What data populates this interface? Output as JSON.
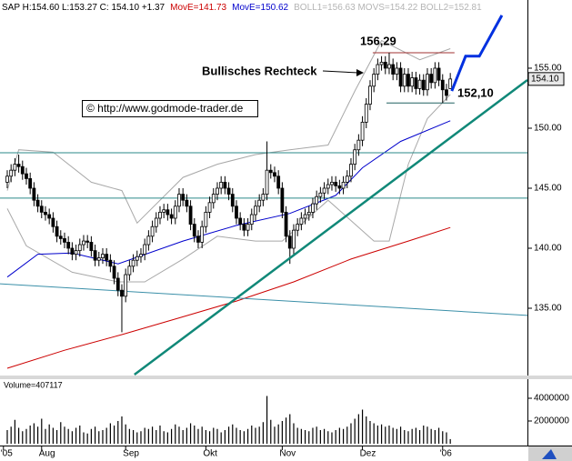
{
  "chart_data": [
    {
      "type": "candlestick",
      "header": [
        {
          "text": "SAP H:154.60 L:153.27 C: 154.10 +1.37",
          "color": "#000000"
        },
        {
          "text": "MovE=141.73",
          "color": "#cc0000"
        },
        {
          "text": "MovE=150.62",
          "color": "#0000cc"
        },
        {
          "text": "BOLL1=156.63 MOVS=154.22 BOLL2=152.81",
          "color": "#b4b4b4"
        }
      ],
      "annotations": {
        "high": "156,29",
        "pattern": "Bullisches Rechteck",
        "low": "152,10",
        "source": "© http://www.godmode-trader.de"
      },
      "last_label": "154.10",
      "up_color": "#ffffff",
      "down_color": "#000000",
      "xlim": [
        -1.9,
        136.2
      ],
      "xticks": [
        {
          "value": -1,
          "label": "'05"
        },
        {
          "value": 9,
          "label": "Aug"
        },
        {
          "value": 31,
          "label": "Sep"
        },
        {
          "value": 52,
          "label": "Okt"
        },
        {
          "value": 72,
          "label": "Nov"
        },
        {
          "value": 93,
          "label": "Dez"
        },
        {
          "value": 114,
          "label": "'06"
        }
      ],
      "ylim": [
        129.47,
        160.68
      ],
      "yticks": [
        {
          "value": 135,
          "label": "135.00"
        },
        {
          "value": 140,
          "label": "140.00"
        },
        {
          "value": 145,
          "label": "145.00"
        },
        {
          "value": 150,
          "label": "150.00"
        },
        {
          "value": 155,
          "label": "155.00"
        }
      ],
      "ohlc": [
        [
          145.5,
          146.5,
          145.0,
          146.0
        ],
        [
          146.0,
          147.0,
          145.5,
          146.5
        ],
        [
          146.5,
          147.5,
          146.0,
          147.0
        ],
        [
          147.0,
          147.8,
          146.3,
          146.8
        ],
        [
          146.8,
          147.3,
          145.7,
          146.2
        ],
        [
          146.2,
          146.7,
          145.3,
          145.8
        ],
        [
          145.8,
          146.3,
          144.5,
          145.0
        ],
        [
          145.0,
          145.5,
          143.5,
          144.0
        ],
        [
          144.0,
          144.5,
          143.0,
          143.5
        ],
        [
          143.5,
          144.0,
          142.5,
          143.0
        ],
        [
          143.0,
          143.5,
          142.3,
          142.8
        ],
        [
          142.8,
          143.3,
          142.0,
          142.5
        ],
        [
          142.5,
          143.0,
          141.3,
          141.8
        ],
        [
          141.8,
          142.3,
          140.5,
          141.0
        ],
        [
          141.0,
          141.5,
          140.3,
          140.8
        ],
        [
          140.8,
          141.3,
          140.0,
          140.5
        ],
        [
          140.5,
          141.0,
          139.5,
          140.0
        ],
        [
          140.0,
          140.5,
          139.0,
          139.5
        ],
        [
          139.5,
          140.3,
          139.0,
          139.8
        ],
        [
          139.8,
          140.8,
          139.3,
          140.3
        ],
        [
          140.3,
          141.1,
          139.8,
          140.6
        ],
        [
          140.6,
          141.1,
          140.0,
          140.5
        ],
        [
          140.5,
          141.0,
          139.3,
          139.8
        ],
        [
          139.8,
          140.3,
          138.5,
          139.0
        ],
        [
          139.0,
          139.7,
          138.5,
          139.2
        ],
        [
          139.2,
          140.0,
          138.7,
          139.5
        ],
        [
          139.5,
          140.0,
          138.5,
          139.0
        ],
        [
          139.0,
          139.5,
          138.0,
          138.5
        ],
        [
          138.5,
          139.0,
          137.0,
          137.5
        ],
        [
          137.5,
          138.0,
          136.0,
          136.5
        ],
        [
          136.5,
          137.0,
          133.0,
          136.0
        ],
        [
          136.0,
          138.3,
          135.5,
          137.8
        ],
        [
          137.8,
          139.0,
          137.3,
          138.5
        ],
        [
          138.5,
          139.5,
          138.0,
          139.0
        ],
        [
          139.0,
          139.8,
          138.5,
          139.3
        ],
        [
          139.3,
          140.0,
          138.8,
          139.5
        ],
        [
          139.5,
          140.8,
          139.0,
          140.3
        ],
        [
          140.3,
          141.5,
          139.8,
          141.0
        ],
        [
          141.0,
          142.3,
          140.5,
          141.8
        ],
        [
          141.8,
          143.0,
          141.3,
          142.5
        ],
        [
          142.5,
          143.5,
          142.0,
          143.0
        ],
        [
          143.0,
          143.7,
          142.5,
          143.2
        ],
        [
          143.2,
          143.7,
          142.3,
          142.8
        ],
        [
          142.8,
          143.3,
          142.0,
          142.5
        ],
        [
          142.5,
          144.0,
          142.0,
          143.5
        ],
        [
          143.5,
          145.0,
          143.0,
          144.5
        ],
        [
          144.5,
          145.0,
          143.5,
          144.0
        ],
        [
          144.0,
          144.5,
          143.0,
          143.5
        ],
        [
          143.5,
          144.0,
          141.5,
          142.0
        ],
        [
          142.0,
          142.5,
          140.5,
          141.0
        ],
        [
          141.0,
          141.5,
          140.0,
          140.5
        ],
        [
          140.5,
          142.3,
          140.0,
          141.8
        ],
        [
          141.8,
          143.5,
          141.3,
          143.0
        ],
        [
          143.0,
          144.3,
          142.5,
          143.8
        ],
        [
          143.8,
          145.0,
          143.3,
          144.5
        ],
        [
          144.5,
          145.5,
          144.0,
          145.0
        ],
        [
          145.0,
          146.0,
          144.5,
          145.5
        ],
        [
          145.5,
          146.0,
          144.5,
          145.0
        ],
        [
          145.0,
          145.5,
          144.0,
          144.5
        ],
        [
          144.5,
          145.0,
          143.0,
          143.5
        ],
        [
          143.5,
          144.0,
          142.0,
          142.5
        ],
        [
          142.5,
          143.0,
          141.5,
          142.0
        ],
        [
          142.0,
          142.5,
          141.0,
          141.5
        ],
        [
          141.5,
          142.5,
          141.0,
          142.0
        ],
        [
          142.0,
          143.3,
          141.5,
          142.8
        ],
        [
          142.8,
          144.0,
          142.3,
          143.5
        ],
        [
          143.5,
          144.5,
          143.0,
          144.0
        ],
        [
          144.0,
          145.0,
          143.5,
          144.5
        ],
        [
          144.5,
          148.9,
          144.0,
          146.5
        ],
        [
          146.5,
          147.0,
          145.8,
          146.3
        ],
        [
          146.3,
          146.8,
          145.5,
          146.0
        ],
        [
          146.0,
          146.5,
          144.5,
          145.0
        ],
        [
          145.0,
          145.5,
          142.5,
          143.0
        ],
        [
          143.0,
          143.5,
          140.5,
          141.0
        ],
        [
          141.0,
          141.5,
          138.7,
          140.0
        ],
        [
          140.0,
          142.0,
          139.5,
          141.5
        ],
        [
          141.5,
          142.5,
          141.0,
          142.0
        ],
        [
          142.0,
          143.0,
          141.5,
          142.5
        ],
        [
          142.5,
          143.3,
          142.0,
          142.8
        ],
        [
          142.8,
          143.5,
          142.3,
          143.0
        ],
        [
          143.0,
          144.2,
          142.5,
          143.7
        ],
        [
          143.7,
          144.8,
          143.2,
          144.3
        ],
        [
          144.3,
          145.1,
          143.8,
          144.6
        ],
        [
          144.6,
          145.5,
          144.1,
          145.0
        ],
        [
          145.0,
          145.8,
          144.5,
          145.3
        ],
        [
          145.3,
          146.0,
          144.8,
          145.5
        ],
        [
          145.5,
          146.0,
          144.7,
          145.2
        ],
        [
          145.2,
          145.7,
          144.5,
          145.0
        ],
        [
          145.0,
          146.0,
          144.5,
          145.5
        ],
        [
          145.5,
          146.5,
          145.0,
          146.0
        ],
        [
          146.0,
          147.5,
          145.5,
          147.0
        ],
        [
          147.0,
          148.7,
          146.5,
          148.2
        ],
        [
          148.2,
          149.5,
          147.7,
          149.0
        ],
        [
          149.0,
          151.0,
          148.5,
          150.5
        ],
        [
          150.5,
          152.5,
          150.0,
          152.0
        ],
        [
          152.0,
          154.0,
          151.5,
          153.5
        ],
        [
          153.5,
          155.0,
          153.0,
          154.5
        ],
        [
          154.5,
          155.8,
          154.0,
          155.3
        ],
        [
          155.3,
          156.0,
          154.8,
          155.5
        ],
        [
          155.5,
          156.0,
          154.5,
          155.0
        ],
        [
          155.0,
          156.29,
          154.5,
          155.3
        ],
        [
          155.3,
          155.8,
          154.0,
          154.5
        ],
        [
          154.5,
          155.5,
          154.0,
          155.0
        ],
        [
          155.0,
          155.5,
          153.0,
          153.5
        ],
        [
          153.5,
          155.0,
          153.0,
          154.5
        ],
        [
          154.5,
          155.0,
          153.0,
          153.5
        ],
        [
          153.5,
          154.7,
          153.0,
          154.2
        ],
        [
          154.2,
          154.7,
          152.8,
          153.3
        ],
        [
          153.3,
          154.5,
          152.8,
          154.0
        ],
        [
          154.0,
          154.5,
          152.7,
          153.2
        ],
        [
          153.2,
          155.0,
          152.7,
          154.5
        ],
        [
          154.5,
          155.0,
          153.3,
          153.8
        ],
        [
          153.8,
          155.5,
          153.3,
          155.0
        ],
        [
          155.0,
          155.5,
          153.5,
          154.0
        ],
        [
          154.0,
          154.5,
          152.1,
          153.2
        ],
        [
          153.2,
          153.7,
          152.3,
          152.73
        ],
        [
          153.3,
          154.6,
          153.27,
          154.1
        ]
      ],
      "lines": [
        {
          "color": "#a8a8a8",
          "style": "thin",
          "x": [
            0,
            3,
            12,
            22,
            30,
            34,
            46,
            55,
            65,
            74,
            84,
            91,
            98,
            108,
            116
          ],
          "values": [
            144.8,
            148.2,
            148.0,
            145.5,
            144.8,
            142.1,
            145.9,
            147.0,
            147.8,
            148.2,
            148.6,
            153.1,
            157.3,
            155.7,
            156.63
          ]
        },
        {
          "color": "#a8a8a8",
          "style": "thin",
          "x": [
            0,
            5,
            17,
            29,
            36,
            46,
            55,
            65,
            72,
            84,
            96,
            100,
            105,
            110,
            116
          ],
          "values": [
            143.3,
            140.2,
            138.0,
            137.2,
            137.2,
            139.1,
            141.0,
            140.6,
            140.6,
            144.0,
            140.6,
            140.6,
            147.0,
            150.8,
            152.81
          ]
        },
        {
          "color": "#cc0000",
          "style": "thin",
          "x": [
            0,
            15,
            30,
            45,
            60,
            75,
            90,
            105,
            116
          ],
          "values": [
            130.0,
            131.5,
            132.8,
            134.2,
            135.6,
            137.2,
            139.1,
            140.6,
            141.73
          ]
        },
        {
          "color": "#0000cc",
          "style": "thin",
          "x": [
            0,
            8,
            17,
            29,
            46,
            60,
            74,
            86,
            93,
            103,
            116
          ],
          "values": [
            137.6,
            139.5,
            139.6,
            138.7,
            140.6,
            141.9,
            142.9,
            144.4,
            146.7,
            148.9,
            150.62
          ]
        },
        {
          "color": "#2a8a8a",
          "style": "thin",
          "x": [
            -1.9,
            136.2
          ],
          "values": [
            147.95,
            147.95
          ]
        },
        {
          "color": "#2a8a8a",
          "style": "thin",
          "x": [
            -1.9,
            136.2
          ],
          "values": [
            144.17,
            144.17
          ]
        },
        {
          "color": "#3a8fa8",
          "style": "thin",
          "x": [
            -1.9,
            136.2
          ],
          "values": [
            137.04,
            134.4
          ]
        },
        {
          "color": "#108878",
          "style": "thick",
          "x": [
            33.3,
            136.2
          ],
          "values": [
            129.47,
            154.01
          ]
        },
        {
          "color": "#a03030",
          "style": "thin",
          "x": [
            95.7,
            117.1
          ],
          "values": [
            156.29,
            156.29
          ]
        },
        {
          "color": "#206060",
          "style": "thin",
          "x": [
            99.3,
            117.1
          ],
          "values": [
            152.1,
            152.1
          ]
        },
        {
          "color": "#0030e0",
          "style": "bold",
          "x": [
            116.4,
            120,
            123.6,
            129.5
          ],
          "values": [
            153.1,
            156.0,
            156.0,
            159.4
          ]
        }
      ]
    },
    {
      "type": "bar",
      "title": "Volume=407117",
      "color": "#000000",
      "ylim": [
        0,
        5440000
      ],
      "yticks": [
        2000000,
        4000000
      ],
      "values": [
        1200000,
        1500000,
        2100000,
        1400000,
        1100000,
        1300000,
        1600000,
        1800000,
        1500000,
        2200000,
        1300000,
        1700000,
        1400000,
        1200000,
        1900000,
        1500000,
        1300000,
        1100000,
        1400000,
        1600000,
        1000000,
        900000,
        1300000,
        1500000,
        1100000,
        1200000,
        1400000,
        1800000,
        1600000,
        2000000,
        2400000,
        1700000,
        1300000,
        1200000,
        1000000,
        1100000,
        1400000,
        1300000,
        1500000,
        1200000,
        1600000,
        1100000,
        1000000,
        1300000,
        1700000,
        1500000,
        1200000,
        1400000,
        1800000,
        1600000,
        1300000,
        1500000,
        1200000,
        1100000,
        1400000,
        1300000,
        1000000,
        1200000,
        1500000,
        1700000,
        1400000,
        1200000,
        1100000,
        1300000,
        1600000,
        1400000,
        1500000,
        1900000,
        4200000,
        2100000,
        1500000,
        1700000,
        2000000,
        2300000,
        2600000,
        1800000,
        1400000,
        1300000,
        1200000,
        1100000,
        1400000,
        1500000,
        1200000,
        1300000,
        1100000,
        1000000,
        1200000,
        1400000,
        1300000,
        1500000,
        1800000,
        2200000,
        2600000,
        3000000,
        2400000,
        2000000,
        1800000,
        1600000,
        1700000,
        1500000,
        1600000,
        1400000,
        1300000,
        1500000,
        1200000,
        1100000,
        1300000,
        1400000,
        1200000,
        1600000,
        1500000,
        1300000,
        1200000,
        1400000,
        1100000,
        1000000,
        407117
      ]
    }
  ]
}
